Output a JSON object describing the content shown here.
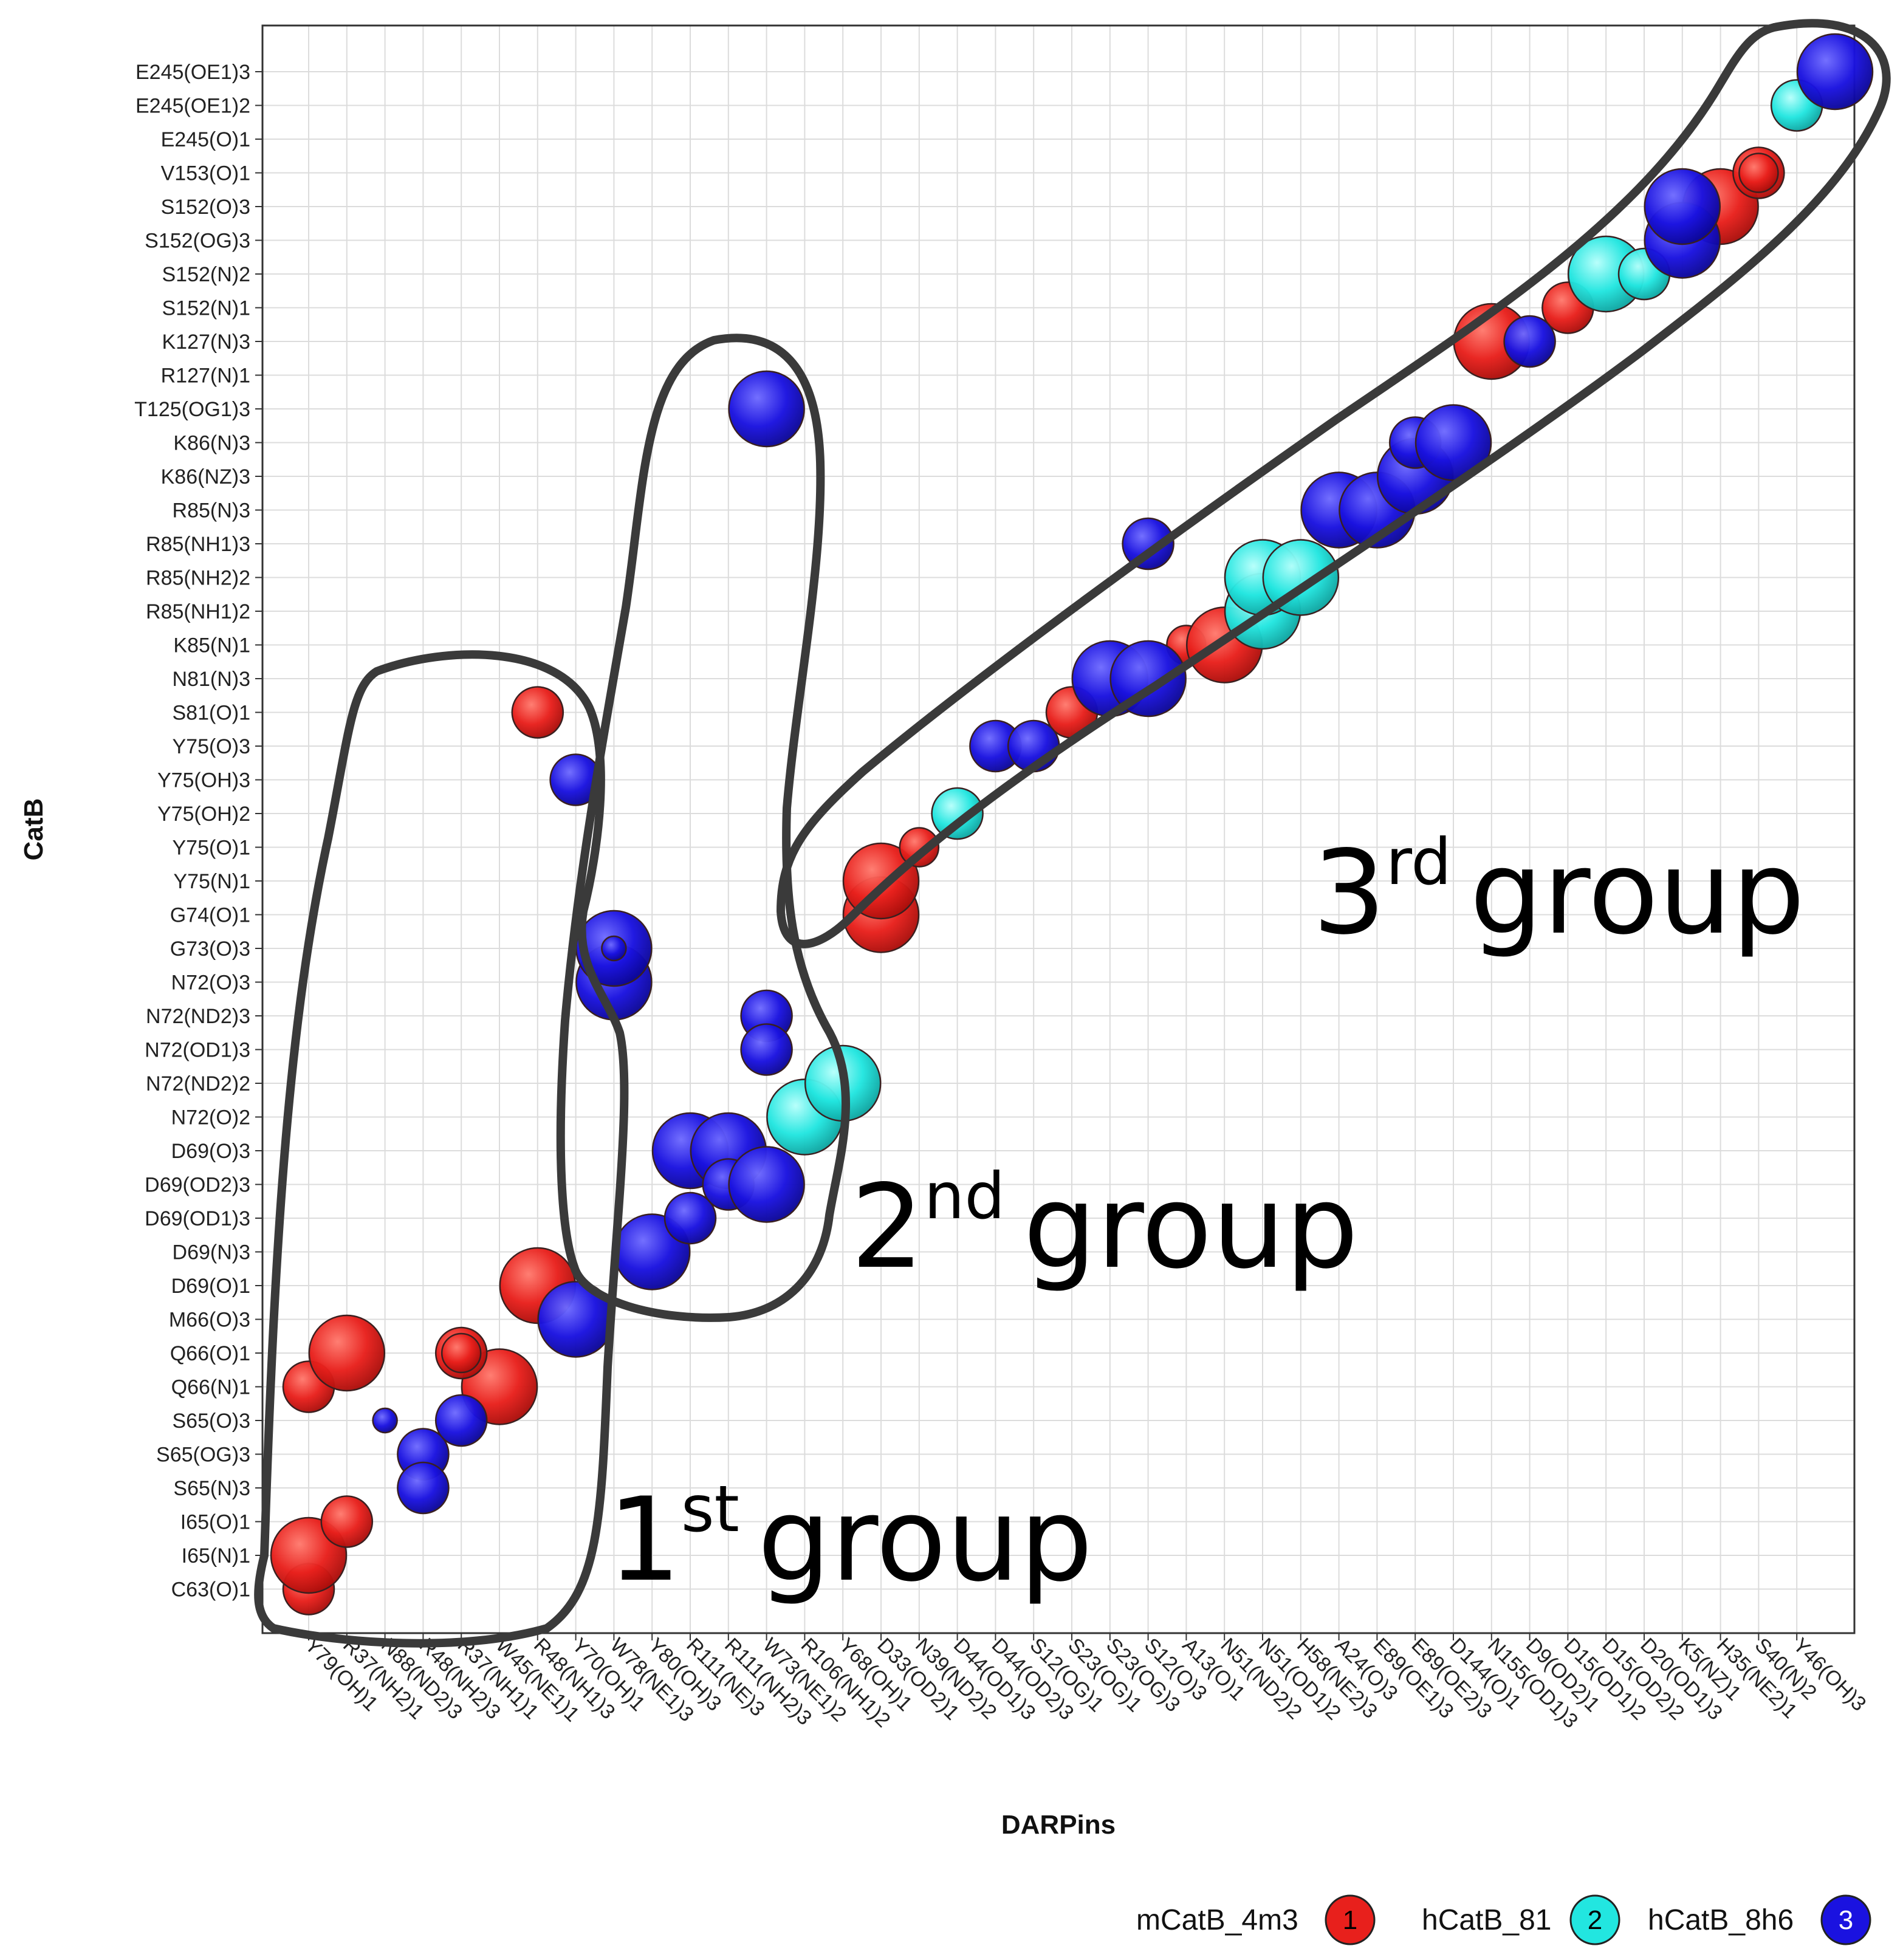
{
  "chart_data": {
    "type": "scatter",
    "xlabel": "DARPins",
    "ylabel": "CatB",
    "grid": true,
    "x_categories": [
      "Y79(OH)1",
      "R37(NH2)1",
      "N88(ND2)3",
      "R48(NH2)3",
      "R37(NH1)1",
      "W45(NE1)1",
      "R48(NH1)3",
      "Y70(OH)1",
      "W78(NE1)3",
      "Y80(OH)3",
      "R111(NE)3",
      "R111(NH2)3",
      "W73(NE1)2",
      "R106(NH1)2",
      "Y68(OH)1",
      "D33(OD2)1",
      "N39(ND2)2",
      "D44(OD1)3",
      "D44(OD2)3",
      "S12(OG)1",
      "S23(OG)1",
      "S23(OG)3",
      "S12(O)3",
      "A13(O)1",
      "N51(ND2)2",
      "N51(OD1)2",
      "H58(NE2)3",
      "A24(O)3",
      "E89(OE1)3",
      "E89(OE2)3",
      "D144(O)1",
      "N155(OD1)3",
      "D9(OD2)1",
      "D15(OD1)2",
      "D15(OD2)2",
      "D20(OD1)3",
      "K5(NZ)1",
      "H35(NE2)1",
      "S40(N)2",
      "Y46(OH)3"
    ],
    "y_categories": [
      "C63(O)1",
      "I65(N)1",
      "I65(O)1",
      "S65(N)3",
      "S65(OG)3",
      "S65(O)3",
      "Q66(N)1",
      "Q66(O)1",
      "M66(O)3",
      "D69(O)1",
      "D69(N)3",
      "D69(OD1)3",
      "D69(OD2)3",
      "D69(O)3",
      "N72(O)2",
      "N72(ND2)2",
      "N72(OD1)3",
      "N72(ND2)3",
      "N72(O)3",
      "G73(O)3",
      "G74(O)1",
      "Y75(N)1",
      "Y75(O)1",
      "Y75(OH)2",
      "Y75(OH)3",
      "Y75(O)3",
      "S81(O)1",
      "N81(N)3",
      "K85(N)1",
      "R85(NH1)2",
      "R85(NH2)2",
      "R85(NH1)3",
      "R85(N)3",
      "K86(NZ)3",
      "K86(N)3",
      "T125(OG1)3",
      "R127(N)1",
      "K127(N)3",
      "S152(N)1",
      "S152(N)2",
      "S152(OG)3",
      "S152(O)3",
      "V153(O)1",
      "E245(O)1",
      "E245(OE1)2",
      "E245(OE1)3"
    ],
    "series": [
      {
        "name": "mCatB_4m3",
        "id": "1",
        "color": "#e8201c",
        "points": [
          [
            0,
            0,
            "M"
          ],
          [
            0,
            1,
            "L"
          ],
          [
            0,
            6,
            "M"
          ],
          [
            1,
            2,
            "M"
          ],
          [
            1,
            7,
            "L"
          ],
          [
            5,
            6,
            "L"
          ],
          [
            4,
            7,
            "M"
          ],
          [
            4,
            7,
            "S"
          ],
          [
            6,
            9,
            "L"
          ],
          [
            6,
            26,
            "M"
          ],
          [
            15,
            20,
            "L"
          ],
          [
            15,
            21,
            "L"
          ],
          [
            16,
            22,
            "S"
          ],
          [
            20,
            26,
            "M"
          ],
          [
            23,
            28,
            "S"
          ],
          [
            24,
            28,
            "L"
          ],
          [
            31,
            37,
            "L"
          ],
          [
            33,
            38,
            "M"
          ],
          [
            37,
            41,
            "L"
          ],
          [
            38,
            42,
            "M"
          ],
          [
            38,
            42,
            "S"
          ]
        ]
      },
      {
        "name": "hCatB_81",
        "id": "2",
        "color": "#22e6e0",
        "points": [
          [
            17,
            23,
            "M"
          ],
          [
            13,
            14,
            "L"
          ],
          [
            14,
            15,
            "L"
          ],
          [
            25,
            29,
            "L"
          ],
          [
            25,
            30,
            "L"
          ],
          [
            26,
            30,
            "L"
          ],
          [
            34,
            39,
            "L"
          ],
          [
            35,
            39,
            "M"
          ],
          [
            39,
            44,
            "M"
          ]
        ]
      },
      {
        "name": "hCatB_8h6",
        "id": "3",
        "color": "#1a12e0",
        "points": [
          [
            2,
            5,
            "XS"
          ],
          [
            3,
            4,
            "M"
          ],
          [
            3,
            3,
            "M"
          ],
          [
            4,
            5,
            "M"
          ],
          [
            7,
            8,
            "L"
          ],
          [
            7,
            24,
            "M"
          ],
          [
            8,
            18,
            "L"
          ],
          [
            8,
            19,
            "L"
          ],
          [
            8,
            19,
            "XS"
          ],
          [
            9,
            10,
            "L"
          ],
          [
            10,
            13,
            "L"
          ],
          [
            10,
            11,
            "M"
          ],
          [
            11,
            13,
            "L"
          ],
          [
            11,
            12,
            "M"
          ],
          [
            12,
            12,
            "L"
          ],
          [
            12,
            17,
            "M"
          ],
          [
            12,
            16,
            "M"
          ],
          [
            12,
            35,
            "L"
          ],
          [
            18,
            25,
            "M"
          ],
          [
            19,
            25,
            "M"
          ],
          [
            21,
            27,
            "L"
          ],
          [
            22,
            27,
            "L"
          ],
          [
            22,
            31,
            "M"
          ],
          [
            27,
            32,
            "L"
          ],
          [
            28,
            32,
            "L"
          ],
          [
            29,
            33,
            "L"
          ],
          [
            29,
            34,
            "M"
          ],
          [
            30,
            34,
            "L"
          ],
          [
            32,
            37,
            "M"
          ],
          [
            36,
            40,
            "L"
          ],
          [
            36,
            41,
            "L"
          ],
          [
            40,
            45,
            "L"
          ]
        ]
      }
    ],
    "annotations": [
      {
        "label": "1",
        "sup": "st",
        "text": "group"
      },
      {
        "label": "2",
        "sup": "nd",
        "text": "group"
      },
      {
        "label": "3",
        "sup": "rd",
        "text": "group"
      }
    ],
    "legend_position": "bottom-right"
  }
}
